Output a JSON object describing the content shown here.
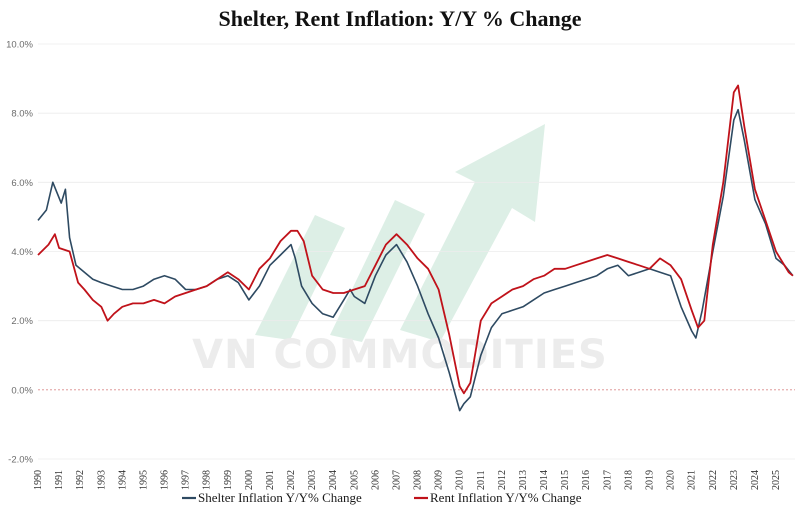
{
  "chart_data": {
    "type": "line",
    "title": "Shelter, Rent Inflation: Y/Y % Change",
    "xlabel": "",
    "ylabel": "",
    "ylim": [
      -2.0,
      10.0
    ],
    "xlim": [
      1990,
      2025.9
    ],
    "y_ticks": [
      -2,
      0,
      2,
      4,
      6,
      8,
      10
    ],
    "y_tick_labels": [
      "-2.0%",
      "0.0%",
      "2.0%",
      "4.0%",
      "6.0%",
      "8.0%",
      "10.0%"
    ],
    "x_ticks": [
      1990,
      1991,
      1992,
      1993,
      1994,
      1995,
      1996,
      1997,
      1998,
      1999,
      2000,
      2001,
      2002,
      2003,
      2004,
      2005,
      2006,
      2007,
      2008,
      2009,
      2010,
      2011,
      2012,
      2013,
      2014,
      2015,
      2016,
      2017,
      2018,
      2019,
      2020,
      2021,
      2022,
      2023,
      2024,
      2025
    ],
    "x_tick_labels": [
      "1990",
      "1991",
      "1992",
      "1993",
      "1994",
      "1995",
      "1996",
      "1997",
      "1998",
      "1999",
      "2000",
      "2001",
      "2002",
      "2003",
      "2004",
      "2005",
      "2006",
      "2007",
      "2008",
      "2009",
      "2010",
      "2011",
      "2012",
      "2013",
      "2014",
      "2015",
      "2016",
      "2017",
      "2018",
      "2019",
      "2020",
      "2021",
      "2022",
      "2023",
      "2024",
      "2025"
    ],
    "zero_line": true,
    "legend_position": "bottom",
    "series": [
      {
        "name": "Shelter Inflation Y/Y% Change",
        "color": "#2e4a62",
        "x": [
          1990,
          1990.4,
          1990.7,
          1990.9,
          1991.1,
          1991.3,
          1991.5,
          1991.8,
          1992.2,
          1992.6,
          1993,
          1993.5,
          1994,
          1994.5,
          1995,
          1995.5,
          1996,
          1996.5,
          1997,
          1997.5,
          1998,
          1998.5,
          1999,
          1999.5,
          2000,
          2000.5,
          2001,
          2001.5,
          2002,
          2002.2,
          2002.5,
          2003,
          2003.5,
          2004,
          2004.5,
          2004.8,
          2005,
          2005.5,
          2006,
          2006.5,
          2007,
          2007.5,
          2008,
          2008.5,
          2009,
          2009.5,
          2010,
          2010.2,
          2010.5,
          2011,
          2011.5,
          2012,
          2012.5,
          2013,
          2013.5,
          2014,
          2014.5,
          2015,
          2015.5,
          2016,
          2016.5,
          2017,
          2017.5,
          2018,
          2018.5,
          2019,
          2019.5,
          2020,
          2020.5,
          2021,
          2021.2,
          2021.5,
          2022,
          2022.5,
          2023,
          2023.2,
          2023.5,
          2024,
          2024.5,
          2025,
          2025.4,
          2025.8
        ],
        "values": [
          4.9,
          5.2,
          6.0,
          5.7,
          5.4,
          5.8,
          4.4,
          3.6,
          3.4,
          3.2,
          3.1,
          3.0,
          2.9,
          2.9,
          3.0,
          3.2,
          3.3,
          3.2,
          2.9,
          2.9,
          3.0,
          3.2,
          3.3,
          3.1,
          2.6,
          3.0,
          3.6,
          3.9,
          4.2,
          3.8,
          3.0,
          2.5,
          2.2,
          2.1,
          2.6,
          2.9,
          2.7,
          2.5,
          3.3,
          3.9,
          4.2,
          3.7,
          3.0,
          2.2,
          1.5,
          0.5,
          -0.6,
          -0.4,
          -0.2,
          1.0,
          1.8,
          2.2,
          2.3,
          2.4,
          2.6,
          2.8,
          2.9,
          3.0,
          3.1,
          3.2,
          3.3,
          3.5,
          3.6,
          3.3,
          3.4,
          3.5,
          3.4,
          3.3,
          2.4,
          1.7,
          1.5,
          2.3,
          4.0,
          5.6,
          7.8,
          8.1,
          7.2,
          5.5,
          4.8,
          3.8,
          3.6,
          3.3
        ]
      },
      {
        "name": "Rent Inflation Y/Y% Change",
        "color": "#c0121a",
        "x": [
          1990,
          1990.5,
          1990.8,
          1991,
          1991.5,
          1991.9,
          1992.2,
          1992.6,
          1993,
          1993.3,
          1993.6,
          1994,
          1994.5,
          1995,
          1995.5,
          1996,
          1996.5,
          1997,
          1997.5,
          1998,
          1998.5,
          1999,
          1999.5,
          2000,
          2000.5,
          2001,
          2001.5,
          2002,
          2002.3,
          2002.6,
          2003,
          2003.5,
          2004,
          2004.5,
          2005,
          2005.5,
          2006,
          2006.5,
          2007,
          2007.5,
          2008,
          2008.5,
          2009,
          2009.5,
          2010,
          2010.2,
          2010.5,
          2011,
          2011.5,
          2012,
          2012.5,
          2013,
          2013.5,
          2014,
          2014.5,
          2015,
          2015.5,
          2016,
          2016.5,
          2017,
          2017.5,
          2018,
          2018.5,
          2019,
          2019.5,
          2020,
          2020.5,
          2021,
          2021.3,
          2021.6,
          2022,
          2022.5,
          2023,
          2023.2,
          2023.5,
          2024,
          2024.5,
          2025,
          2025.3,
          2025.6,
          2025.8
        ],
        "values": [
          3.9,
          4.2,
          4.5,
          4.1,
          4.0,
          3.1,
          2.9,
          2.6,
          2.4,
          2.0,
          2.2,
          2.4,
          2.5,
          2.5,
          2.6,
          2.5,
          2.7,
          2.8,
          2.9,
          3.0,
          3.2,
          3.4,
          3.2,
          2.9,
          3.5,
          3.8,
          4.3,
          4.6,
          4.6,
          4.3,
          3.3,
          2.9,
          2.8,
          2.8,
          2.9,
          3.0,
          3.6,
          4.2,
          4.5,
          4.2,
          3.8,
          3.5,
          2.9,
          1.6,
          0.1,
          -0.1,
          0.2,
          2.0,
          2.5,
          2.7,
          2.9,
          3.0,
          3.2,
          3.3,
          3.5,
          3.5,
          3.6,
          3.7,
          3.8,
          3.9,
          3.8,
          3.7,
          3.6,
          3.5,
          3.8,
          3.6,
          3.2,
          2.3,
          1.8,
          2.0,
          4.2,
          6.0,
          8.6,
          8.8,
          7.6,
          5.8,
          4.9,
          4.0,
          3.7,
          3.4,
          3.3
        ]
      }
    ]
  },
  "watermark": {
    "text": "VN COMMODITIES",
    "color": "#ececec",
    "arrow_color": "#ddefe6"
  }
}
